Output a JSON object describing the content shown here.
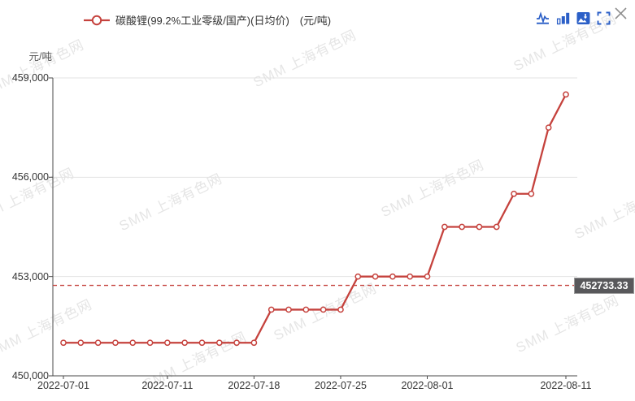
{
  "header": {
    "legend": {
      "label": "碳酸锂(99.2%工业零级/国产)(日均价)　(元/吨)",
      "marker_color": "#c5423d"
    },
    "toolbar_icons": [
      "line-chart-icon",
      "bar-chart-icon",
      "save-image-icon",
      "fullscreen-icon"
    ],
    "close_icon": "close-icon",
    "icon_color": "#2b5fc7",
    "close_color": "#8f8f8f"
  },
  "watermark": {
    "text": "SMM 上海有色网"
  },
  "chart_data": {
    "type": "line",
    "title": "碳酸锂(99.2%工业零级/国产)(日均价)",
    "ylabel": "元/吨",
    "xlabel": "",
    "grid": true,
    "legend_position": "top",
    "ylim": [
      450000,
      459000
    ],
    "line_color": "#c5423d",
    "x": [
      "2022-07-01",
      "2022-07-04",
      "2022-07-05",
      "2022-07-06",
      "2022-07-07",
      "2022-07-08",
      "2022-07-11",
      "2022-07-12",
      "2022-07-13",
      "2022-07-14",
      "2022-07-15",
      "2022-07-18",
      "2022-07-19",
      "2022-07-20",
      "2022-07-21",
      "2022-07-22",
      "2022-07-25",
      "2022-07-26",
      "2022-07-27",
      "2022-07-28",
      "2022-07-29",
      "2022-08-01",
      "2022-08-02",
      "2022-08-03",
      "2022-08-04",
      "2022-08-05",
      "2022-08-08",
      "2022-08-09",
      "2022-08-10",
      "2022-08-11"
    ],
    "series": [
      {
        "name": "碳酸锂(99.2%工业零级/国产)(日均价)",
        "color": "#c5423d",
        "values": [
          451000,
          451000,
          451000,
          451000,
          451000,
          451000,
          451000,
          451000,
          451000,
          451000,
          451000,
          451000,
          452000,
          452000,
          452000,
          452000,
          452000,
          453000,
          453000,
          453000,
          453000,
          453000,
          454500,
          454500,
          454500,
          454500,
          455500,
          455500,
          457500,
          458500
        ]
      }
    ],
    "yticks": [
      {
        "value": 450000,
        "label": "450,000"
      },
      {
        "value": 453000,
        "label": "453,000"
      },
      {
        "value": 456000,
        "label": "456,000"
      },
      {
        "value": 459000,
        "label": "459,000"
      }
    ],
    "xticks": [
      {
        "index": 0,
        "label": "2022-07-01"
      },
      {
        "index": 6,
        "label": "2022-07-11"
      },
      {
        "index": 11,
        "label": "2022-07-18"
      },
      {
        "index": 16,
        "label": "2022-07-25"
      },
      {
        "index": 21,
        "label": "2022-08-01"
      },
      {
        "index": 29,
        "label": "2022-08-11"
      }
    ],
    "average_line": {
      "value": 452733.33,
      "label": "452733.33",
      "style": "dashed",
      "color": "#c5423d"
    }
  }
}
